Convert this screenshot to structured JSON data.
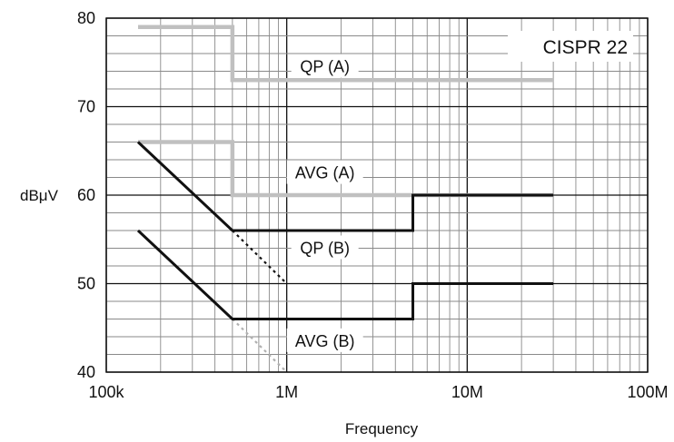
{
  "chart_data": {
    "type": "line",
    "title": "CISPR 22",
    "xlabel": "Frequency",
    "ylabel": "dBμV",
    "x_scale": "log",
    "xlim": [
      100000,
      100000000
    ],
    "ylim": [
      40,
      80
    ],
    "grid": true,
    "x_ticks": [
      {
        "value": 100000,
        "label": "100k"
      },
      {
        "value": 1000000,
        "label": "1M"
      },
      {
        "value": 10000000,
        "label": "10M"
      },
      {
        "value": 100000000,
        "label": "100M"
      }
    ],
    "y_ticks": [
      {
        "value": 40,
        "label": "40"
      },
      {
        "value": 50,
        "label": "50"
      },
      {
        "value": 60,
        "label": "60"
      },
      {
        "value": 70,
        "label": "70"
      },
      {
        "value": 80,
        "label": "80"
      }
    ],
    "series": [
      {
        "name": "QP (A)",
        "color": "#c0c0c0",
        "points": [
          [
            150000,
            79
          ],
          [
            500000,
            79
          ],
          [
            500000,
            73
          ],
          [
            30000000,
            73
          ]
        ],
        "label_at": [
          1000000,
          74.5
        ]
      },
      {
        "name": "AVG (A)",
        "color": "#c0c0c0",
        "points": [
          [
            150000,
            66
          ],
          [
            500000,
            66
          ],
          [
            500000,
            60
          ],
          [
            30000000,
            60
          ]
        ],
        "label_at": [
          1000000,
          62.5
        ]
      },
      {
        "name": "QP (B)",
        "color": "#111111",
        "points": [
          [
            150000,
            66
          ],
          [
            500000,
            56
          ],
          [
            5000000,
            56
          ],
          [
            5000000,
            60
          ],
          [
            30000000,
            60
          ]
        ],
        "label_at": [
          1000000,
          54
        ]
      },
      {
        "name": "AVG (B)",
        "color": "#111111",
        "points": [
          [
            150000,
            56
          ],
          [
            500000,
            46
          ],
          [
            5000000,
            46
          ],
          [
            5000000,
            50
          ],
          [
            30000000,
            50
          ]
        ],
        "label_at": [
          1000000,
          43.5
        ]
      }
    ],
    "dotted_extensions": [
      {
        "color": "#111111",
        "points": [
          [
            500000,
            56
          ],
          [
            1000000,
            50
          ]
        ]
      },
      {
        "color": "#b0b0b0",
        "points": [
          [
            500000,
            46
          ],
          [
            1000000,
            40
          ]
        ]
      }
    ]
  }
}
